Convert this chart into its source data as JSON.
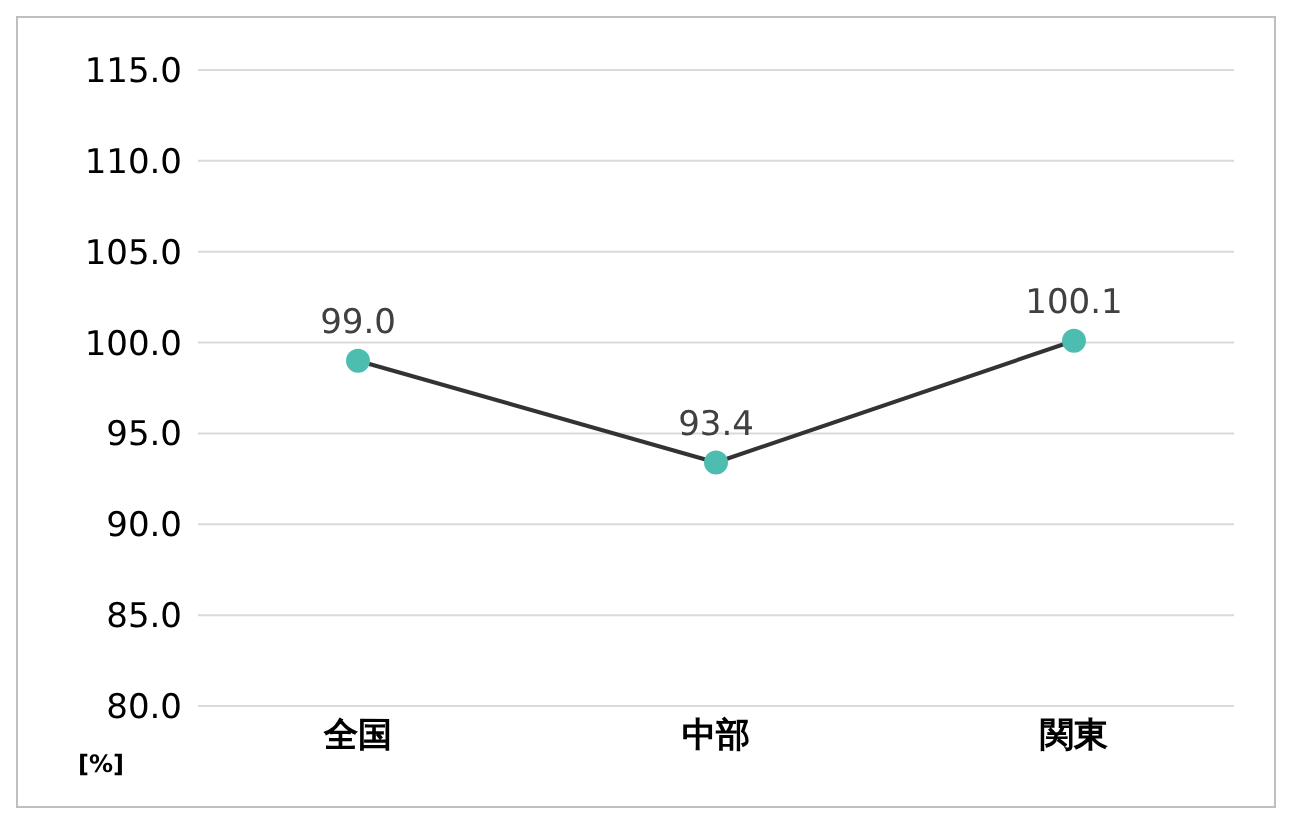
{
  "chart_data": {
    "type": "line",
    "ylabel": "[%]",
    "categories": [
      "全国",
      "中部",
      "関東"
    ],
    "series": [
      {
        "color": "#4dbdb0",
        "values": [
          99.0,
          93.4,
          100.1
        ],
        "value_labels": [
          "99.0",
          "93.4",
          "100.1"
        ]
      }
    ],
    "ylim": [
      80,
      115
    ],
    "yticks": [
      {
        "value": 80,
        "label": "80.0"
      },
      {
        "value": 85,
        "label": "85.0"
      },
      {
        "value": 90,
        "label": "90.0"
      },
      {
        "value": 95,
        "label": "95.0"
      },
      {
        "value": 100,
        "label": "100.0"
      },
      {
        "value": 105,
        "label": "105.0"
      },
      {
        "value": 110,
        "label": "110.0"
      },
      {
        "value": 115,
        "label": "115.0"
      }
    ],
    "grid": "y",
    "legend": false,
    "marker": "circle",
    "line_style": "solid"
  }
}
